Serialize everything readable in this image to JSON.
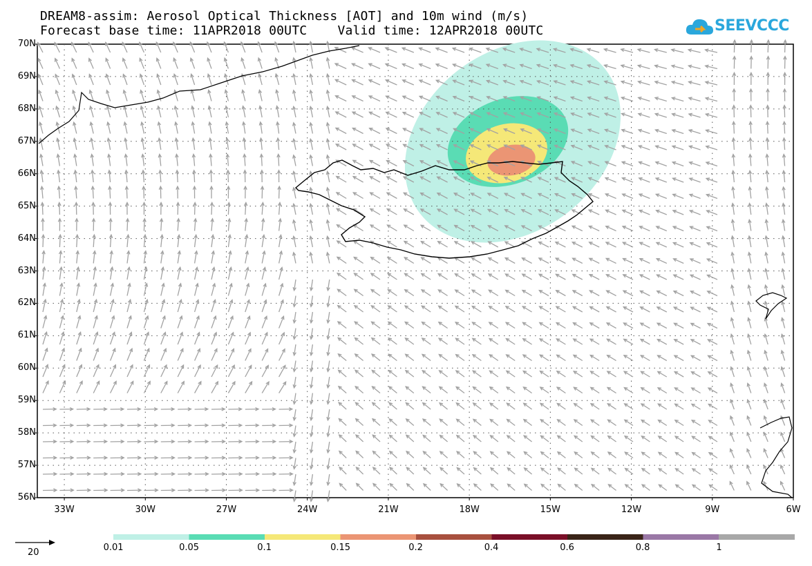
{
  "header": {
    "title_line1": "DREAM8-assim: Aerosol Optical Thickness [AOT] and 10m wind (m/s)",
    "title_line2": "Forecast base time: 11APR2018 00UTC    Valid time: 12APR2018 00UTC"
  },
  "logo": {
    "text": "SEEVCCC",
    "icon": "cloud-icon"
  },
  "map": {
    "lat_labels": [
      "70N",
      "69N",
      "68N",
      "67N",
      "66N",
      "65N",
      "64N",
      "63N",
      "62N",
      "61N",
      "60N",
      "59N",
      "58N",
      "57N",
      "56N"
    ],
    "lon_labels": [
      "33W",
      "30W",
      "27W",
      "24W",
      "21W",
      "18W",
      "15W",
      "12W",
      "9W",
      "6W"
    ],
    "lat_range": [
      56,
      70
    ],
    "lon_range": [
      -34,
      -6
    ],
    "grid": "dotted"
  },
  "legend": {
    "reference_vector_label": "20",
    "reference_vector_unit": "m/s",
    "levels": [
      "0.01",
      "0.05",
      "0.1",
      "0.15",
      "0.2",
      "0.4",
      "0.6",
      "0.8",
      "1"
    ],
    "colors": [
      "#bff0e6",
      "#5adcb4",
      "#f5e878",
      "#eb9574",
      "#a8503e",
      "#7a0f28",
      "#3a2418",
      "#9a78a6",
      "#a8a8a8"
    ]
  }
}
